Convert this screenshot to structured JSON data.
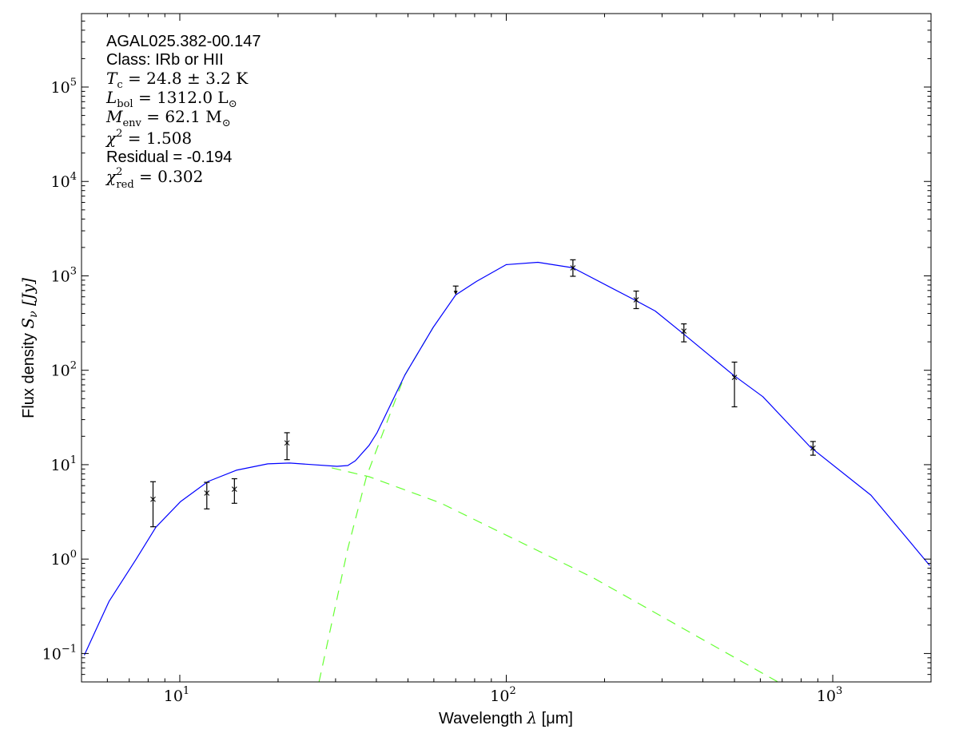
{
  "chart_data": {
    "type": "scatter",
    "title": "",
    "xlabel": {
      "text": "Wavelength ",
      "symbol": "λ",
      "unit": " [μm]"
    },
    "ylabel": {
      "text": "Flux density ",
      "symbol": "S",
      "sub": "ν",
      "unit": " [Jy]"
    },
    "xscale": "log",
    "yscale": "log",
    "xlim": [
      5,
      2000
    ],
    "ylim": [
      0.05,
      600000
    ],
    "x_ticks": [
      {
        "value": 10,
        "base": "10",
        "exp": "1"
      },
      {
        "value": 100,
        "base": "10",
        "exp": "2"
      },
      {
        "value": 1000,
        "base": "10",
        "exp": "3"
      }
    ],
    "y_ticks": [
      {
        "value": 0.1,
        "base": "10",
        "exp": "−1"
      },
      {
        "value": 1,
        "base": "10",
        "exp": "0"
      },
      {
        "value": 10,
        "base": "10",
        "exp": "1"
      },
      {
        "value": 100,
        "base": "10",
        "exp": "2"
      },
      {
        "value": 1000,
        "base": "10",
        "exp": "3"
      },
      {
        "value": 10000,
        "base": "10",
        "exp": "4"
      },
      {
        "value": 100000,
        "base": "10",
        "exp": "5"
      }
    ],
    "grid": false,
    "annotations": [
      {
        "style": "sans",
        "main": "AGAL025.382-00.147"
      },
      {
        "style": "sans",
        "main": "Class: IRb or HII"
      },
      {
        "style": "math",
        "main": "T",
        "sub": "c",
        "rest": " = 24.8 ± 3.2 K"
      },
      {
        "style": "math",
        "main": "L",
        "sub": "bol",
        "rest": " = 1312.0 L",
        "sub2": "⊙"
      },
      {
        "style": "math",
        "main": "M",
        "sub": "env",
        "rest": " = 62.1 M",
        "sub2": "⊙"
      },
      {
        "style": "math",
        "main": "χ",
        "sup": "2",
        "rest": " = 1.508"
      },
      {
        "style": "sans",
        "main": "Residual = -0.194"
      },
      {
        "style": "math",
        "main": "χ",
        "sup": "2",
        "sub": "red",
        "rest": " = 0.302"
      }
    ],
    "measurements": [
      {
        "x": 8.28,
        "y": 4.3,
        "ylo": 2.2,
        "yhi": 6.6
      },
      {
        "x": 12.1,
        "y": 5.0,
        "ylo": 3.4,
        "yhi": 6.5
      },
      {
        "x": 14.7,
        "y": 5.5,
        "ylo": 3.9,
        "yhi": 7.1
      },
      {
        "x": 21.3,
        "y": 17,
        "ylo": 11.3,
        "yhi": 21.8
      },
      {
        "x": 160,
        "y": 1215,
        "ylo": 990,
        "yhi": 1480
      },
      {
        "x": 250,
        "y": 557,
        "ylo": 450,
        "yhi": 690
      },
      {
        "x": 350,
        "y": 260,
        "ylo": 200,
        "yhi": 310
      },
      {
        "x": 500,
        "y": 84,
        "ylo": 41,
        "yhi": 122
      },
      {
        "x": 870,
        "y": 15,
        "ylo": 12.6,
        "yhi": 17.6
      }
    ],
    "upper_limits": [
      {
        "x": 70,
        "y": 780
      }
    ],
    "series": [
      {
        "style": "solid",
        "color": "#0000ff",
        "points": [
          [
            5.1,
            0.096
          ],
          [
            6.07,
            0.356
          ],
          [
            7.35,
            1.0
          ],
          [
            8.45,
            2.18
          ],
          [
            10.06,
            4.07
          ],
          [
            12.2,
            6.64
          ],
          [
            14.9,
            8.73
          ],
          [
            18.6,
            10.2
          ],
          [
            21.7,
            10.4
          ],
          [
            30.3,
            9.6
          ],
          [
            32.7,
            9.8
          ],
          [
            34.5,
            11.0
          ],
          [
            38.0,
            16.0
          ],
          [
            40.2,
            21.8
          ],
          [
            48.9,
            89
          ],
          [
            59.8,
            287
          ],
          [
            70,
            627
          ],
          [
            81.1,
            873
          ],
          [
            100,
            1314
          ],
          [
            125,
            1393
          ],
          [
            160,
            1216
          ],
          [
            247,
            557
          ],
          [
            286,
            424
          ],
          [
            348,
            245
          ],
          [
            496,
            89
          ],
          [
            611,
            52.5
          ],
          [
            855,
            15.3
          ],
          [
            1309,
            4.76
          ],
          [
            1982,
            0.855
          ]
        ]
      },
      {
        "style": "dashed",
        "color": "#66ff33",
        "points": [
          [
            26.7,
            0.05
          ],
          [
            32.7,
            1.29
          ],
          [
            37.3,
            7.46
          ],
          [
            42.1,
            22.7
          ],
          [
            48.9,
            89
          ],
          [
            59.8,
            287
          ]
        ]
      },
      {
        "style": "dashed",
        "color": "#66ff33",
        "points": [
          [
            29.2,
            9.25
          ],
          [
            38.0,
            7.46
          ],
          [
            63.0,
            3.92
          ],
          [
            184,
            0.638
          ],
          [
            682,
            0.0496
          ]
        ]
      }
    ]
  }
}
